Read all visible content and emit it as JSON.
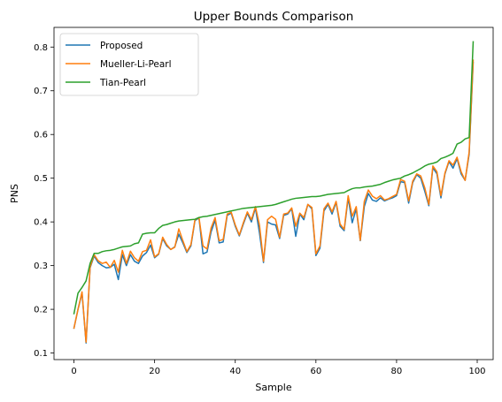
{
  "chart_data": {
    "type": "line",
    "title": "Upper Bounds Comparison",
    "xlabel": "Sample",
    "ylabel": "PNS",
    "xlim": [
      -4.95,
      103.95
    ],
    "ylim": [
      0.085,
      0.845
    ],
    "xticks": [
      0,
      20,
      40,
      60,
      80,
      100
    ],
    "yticks": [
      0.1,
      0.2,
      0.3,
      0.4,
      0.5,
      0.6,
      0.7,
      0.8
    ],
    "grid": false,
    "legend_position": "top-left",
    "x": [
      0,
      1,
      2,
      3,
      4,
      5,
      6,
      7,
      8,
      9,
      10,
      11,
      12,
      13,
      14,
      15,
      16,
      17,
      18,
      19,
      20,
      21,
      22,
      23,
      24,
      25,
      26,
      27,
      28,
      29,
      30,
      31,
      32,
      33,
      34,
      35,
      36,
      37,
      38,
      39,
      40,
      41,
      42,
      43,
      44,
      45,
      46,
      47,
      48,
      49,
      50,
      51,
      52,
      53,
      54,
      55,
      56,
      57,
      58,
      59,
      60,
      61,
      62,
      63,
      64,
      65,
      66,
      67,
      68,
      69,
      70,
      71,
      72,
      73,
      74,
      75,
      76,
      77,
      78,
      79,
      80,
      81,
      82,
      83,
      84,
      85,
      86,
      87,
      88,
      89,
      90,
      91,
      92,
      93,
      94,
      95,
      96,
      97,
      98,
      99
    ],
    "series": [
      {
        "name": "Proposed",
        "color": "#1f77b4",
        "values": [
          0.157,
          0.2,
          0.237,
          0.123,
          0.295,
          0.322,
          0.307,
          0.3,
          0.295,
          0.296,
          0.303,
          0.268,
          0.325,
          0.3,
          0.325,
          0.31,
          0.305,
          0.322,
          0.33,
          0.347,
          0.318,
          0.326,
          0.362,
          0.345,
          0.337,
          0.343,
          0.372,
          0.352,
          0.33,
          0.345,
          0.403,
          0.409,
          0.327,
          0.331,
          0.377,
          0.404,
          0.352,
          0.354,
          0.415,
          0.42,
          0.39,
          0.368,
          0.395,
          0.42,
          0.4,
          0.432,
          0.375,
          0.307,
          0.4,
          0.395,
          0.393,
          0.362,
          0.415,
          0.418,
          0.43,
          0.367,
          0.418,
          0.405,
          0.44,
          0.43,
          0.323,
          0.34,
          0.425,
          0.44,
          0.418,
          0.445,
          0.39,
          0.38,
          0.455,
          0.398,
          0.43,
          0.357,
          0.435,
          0.465,
          0.45,
          0.447,
          0.455,
          0.448,
          0.452,
          0.455,
          0.46,
          0.492,
          0.49,
          0.443,
          0.49,
          0.508,
          0.5,
          0.47,
          0.437,
          0.524,
          0.51,
          0.455,
          0.51,
          0.538,
          0.523,
          0.545,
          0.51,
          0.495,
          0.555,
          0.765
        ]
      },
      {
        "name": "Mueller-Li-Pearl",
        "color": "#ff7f0e",
        "values": [
          0.157,
          0.2,
          0.24,
          0.125,
          0.297,
          0.325,
          0.311,
          0.305,
          0.308,
          0.296,
          0.312,
          0.285,
          0.335,
          0.305,
          0.333,
          0.318,
          0.31,
          0.332,
          0.335,
          0.359,
          0.32,
          0.327,
          0.365,
          0.348,
          0.337,
          0.342,
          0.384,
          0.357,
          0.332,
          0.348,
          0.405,
          0.41,
          0.345,
          0.338,
          0.386,
          0.41,
          0.357,
          0.36,
          0.418,
          0.422,
          0.393,
          0.37,
          0.398,
          0.423,
          0.405,
          0.435,
          0.393,
          0.31,
          0.405,
          0.413,
          0.406,
          0.365,
          0.418,
          0.42,
          0.432,
          0.39,
          0.42,
          0.41,
          0.44,
          0.433,
          0.327,
          0.345,
          0.43,
          0.443,
          0.423,
          0.447,
          0.395,
          0.383,
          0.46,
          0.413,
          0.435,
          0.358,
          0.447,
          0.473,
          0.459,
          0.453,
          0.46,
          0.45,
          0.453,
          0.458,
          0.463,
          0.497,
          0.493,
          0.448,
          0.493,
          0.51,
          0.505,
          0.478,
          0.44,
          0.528,
          0.515,
          0.46,
          0.512,
          0.54,
          0.53,
          0.548,
          0.515,
          0.495,
          0.56,
          0.77
        ]
      },
      {
        "name": "Tian-Pearl",
        "color": "#2ca02c",
        "values": [
          0.19,
          0.237,
          0.25,
          0.265,
          0.305,
          0.328,
          0.328,
          0.332,
          0.334,
          0.335,
          0.337,
          0.34,
          0.343,
          0.344,
          0.345,
          0.35,
          0.352,
          0.372,
          0.374,
          0.375,
          0.375,
          0.385,
          0.392,
          0.394,
          0.397,
          0.4,
          0.402,
          0.403,
          0.404,
          0.405,
          0.406,
          0.41,
          0.412,
          0.413,
          0.415,
          0.417,
          0.419,
          0.421,
          0.423,
          0.425,
          0.427,
          0.429,
          0.431,
          0.432,
          0.433,
          0.434,
          0.435,
          0.436,
          0.437,
          0.438,
          0.44,
          0.443,
          0.446,
          0.449,
          0.452,
          0.454,
          0.455,
          0.456,
          0.457,
          0.458,
          0.458,
          0.459,
          0.461,
          0.463,
          0.464,
          0.465,
          0.466,
          0.467,
          0.472,
          0.476,
          0.478,
          0.478,
          0.48,
          0.481,
          0.482,
          0.484,
          0.486,
          0.49,
          0.493,
          0.496,
          0.498,
          0.5,
          0.505,
          0.508,
          0.512,
          0.517,
          0.522,
          0.528,
          0.532,
          0.534,
          0.537,
          0.545,
          0.548,
          0.552,
          0.557,
          0.578,
          0.582,
          0.59,
          0.593,
          0.812
        ]
      }
    ]
  }
}
